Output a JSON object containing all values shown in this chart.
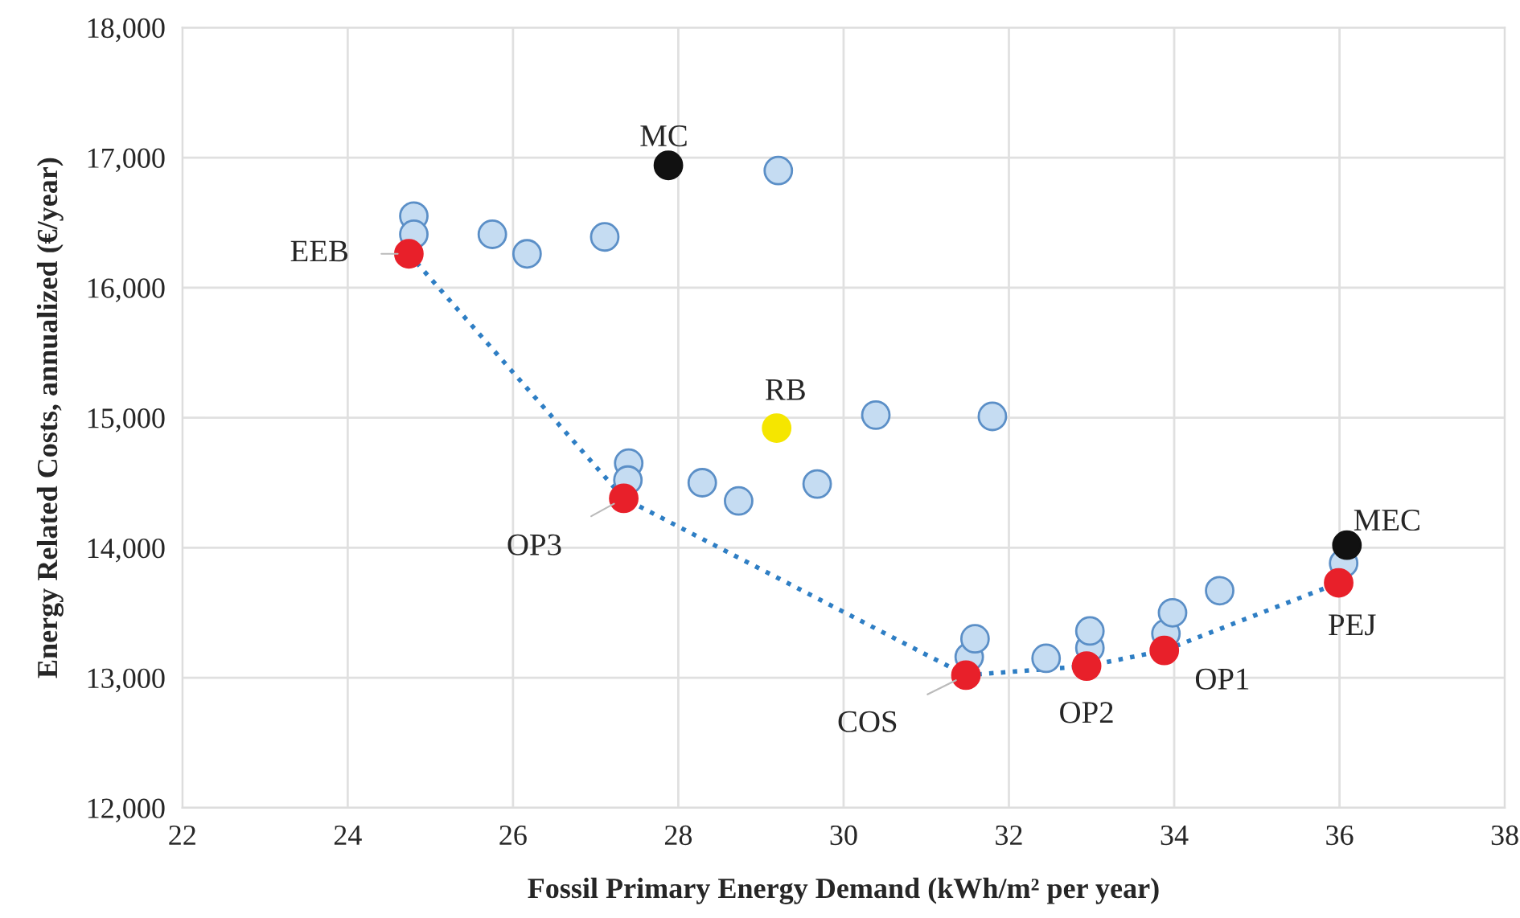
{
  "chart_data": {
    "type": "scatter",
    "xlabel": "Fossil Primary Energy Demand (kWh/m² per year)",
    "ylabel": "Energy Related Costs, annualized (€/year)",
    "xlim": [
      22,
      38
    ],
    "xticks": [
      22,
      24,
      26,
      28,
      30,
      32,
      34,
      36,
      38
    ],
    "ylim": [
      12000,
      18000
    ],
    "yticks": [
      {
        "value": 12000,
        "label": "12,000"
      },
      {
        "value": 13000,
        "label": "13,000"
      },
      {
        "value": 14000,
        "label": "14,000"
      },
      {
        "value": 15000,
        "label": "15,000"
      },
      {
        "value": 16000,
        "label": "16,000"
      },
      {
        "value": 17000,
        "label": "17,000"
      },
      {
        "value": 18000,
        "label": "18,000"
      }
    ],
    "grid": true,
    "marker": "circle",
    "series": [
      {
        "type": "line",
        "color": "#2e7ec4",
        "line_style": "dotted",
        "marker": "none",
        "x": [
          24.74,
          27.34,
          31.48,
          32.94,
          33.88,
          35.99
        ],
        "values": [
          16260,
          14380,
          13020,
          13090,
          13210,
          13730
        ]
      },
      {
        "color": "#c5dcf2",
        "x": [
          24.8,
          24.8,
          25.75,
          26.17,
          27.11,
          29.21,
          30.39,
          27.4,
          27.39,
          28.29,
          28.73,
          29.68,
          31.8,
          31.52,
          31.59,
          32.45,
          32.98,
          32.98,
          33.9,
          33.98,
          34.55,
          36.05
        ],
        "values": [
          16550,
          16410,
          16410,
          16260,
          16390,
          16900,
          15020,
          14650,
          14520,
          14500,
          14360,
          14490,
          15010,
          13160,
          13300,
          13150,
          13230,
          13360,
          13340,
          13500,
          13670,
          13880
        ]
      },
      {
        "color": "#e8202a",
        "x": [
          24.74,
          27.34,
          31.48,
          32.94,
          33.88,
          35.99
        ],
        "values": [
          16260,
          14380,
          13020,
          13090,
          13210,
          13730
        ]
      },
      {
        "color": "#111111",
        "x": [
          27.88,
          36.09
        ],
        "values": [
          16940,
          14020
        ]
      },
      {
        "color": "#f5e600",
        "x": [
          29.19
        ],
        "values": [
          14920
        ]
      }
    ],
    "annotations": [
      {
        "text": "MC",
        "x": 27.88,
        "y": 16940
      },
      {
        "text": "RB",
        "x": 29.19,
        "y": 14920
      },
      {
        "text": "EEB",
        "x": 24.74,
        "y": 16260
      },
      {
        "text": "OP3",
        "x": 27.34,
        "y": 14380
      },
      {
        "text": "COS",
        "x": 31.48,
        "y": 13020
      },
      {
        "text": "OP2",
        "x": 32.94,
        "y": 13090
      },
      {
        "text": "OP1",
        "x": 33.88,
        "y": 13210
      },
      {
        "text": "PEJ",
        "x": 35.99,
        "y": 13730
      },
      {
        "text": "MEC",
        "x": 36.09,
        "y": 14020
      }
    ]
  }
}
